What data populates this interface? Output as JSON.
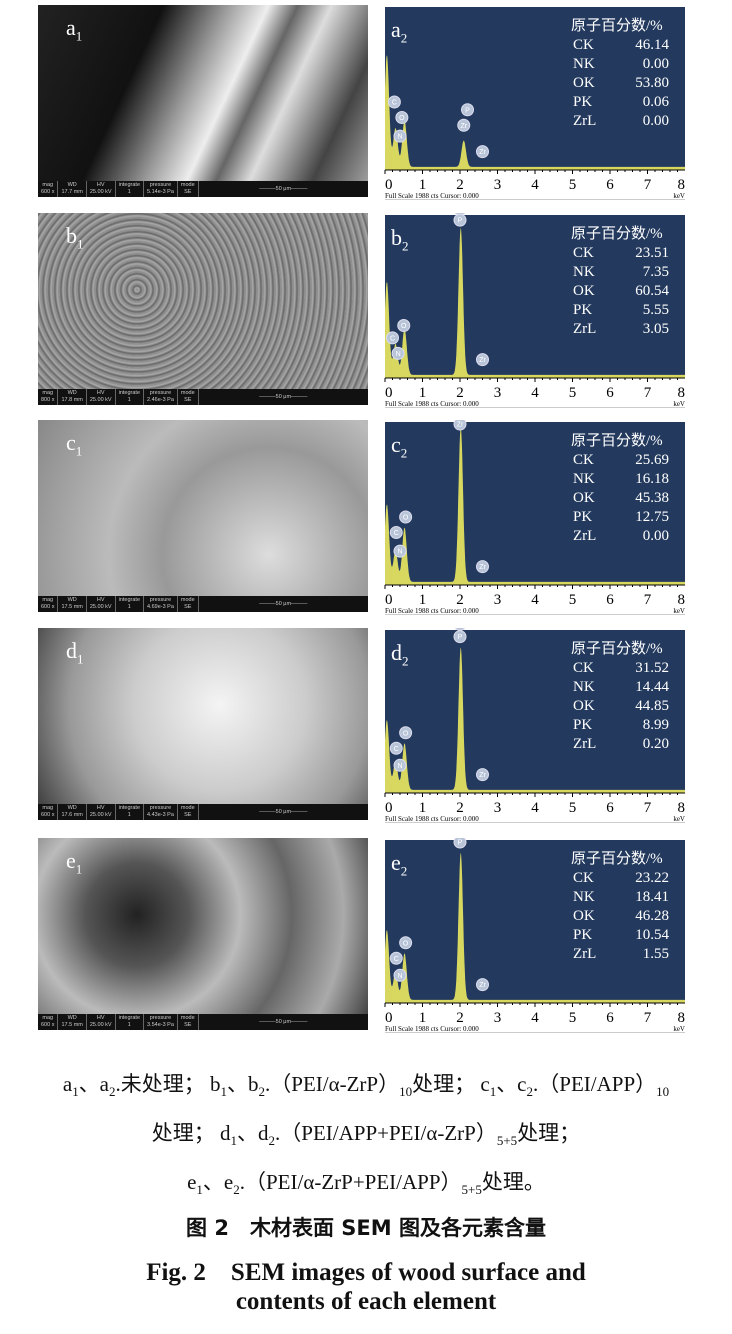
{
  "panels": [
    {
      "sem": {
        "letter": "a",
        "sub": "1",
        "mag": "600 x",
        "wd": "17.7 mm",
        "hv": "25.00 kV",
        "integrate": "1",
        "pressure": "5.14e-3 Pa",
        "mode": "SE",
        "scale": "50 μm"
      },
      "eds": {
        "letter": "a",
        "sub": "2",
        "heading": "原子百分数/%",
        "rows": [
          [
            "CK",
            "46.14"
          ],
          [
            "NK",
            "0.00"
          ],
          [
            "OK",
            "53.80"
          ],
          [
            "PK",
            "0.06"
          ],
          [
            "ZrL",
            "0.00"
          ]
        ],
        "peaks": [
          [
            0.05,
            0.72
          ],
          [
            0.28,
            0.25
          ],
          [
            0.52,
            0.3
          ],
          [
            2.1,
            0.17
          ]
        ],
        "markers": [
          [
            0.25,
            "C",
            0.4
          ],
          [
            0.45,
            "O",
            0.3
          ],
          [
            0.4,
            "N",
            0.18
          ],
          [
            2.2,
            "P",
            0.35
          ],
          [
            2.1,
            "Zr",
            0.25
          ],
          [
            2.6,
            "Zr",
            0.08
          ]
        ],
        "footer": "Full Scale 1988 cts Cursor: 0.000",
        "unit": "keV",
        "xticks": [
          "0",
          "1",
          "2",
          "3",
          "4",
          "5",
          "6",
          "7",
          "8"
        ]
      }
    },
    {
      "sem": {
        "letter": "b",
        "sub": "1",
        "mag": "800 x",
        "wd": "17.8 mm",
        "hv": "25.00 kV",
        "integrate": "1",
        "pressure": "2.46e-3 Pa",
        "mode": "SE",
        "scale": "50 μm"
      },
      "eds": {
        "letter": "b",
        "sub": "2",
        "heading": "原子百分数/%",
        "rows": [
          [
            "CK",
            "23.51"
          ],
          [
            "NK",
            "7.35"
          ],
          [
            "OK",
            "60.54"
          ],
          [
            "PK",
            "5.55"
          ],
          [
            "ZrL",
            "3.05"
          ]
        ],
        "peaks": [
          [
            0.05,
            0.6
          ],
          [
            0.28,
            0.2
          ],
          [
            0.52,
            0.3
          ],
          [
            2.02,
            0.95
          ]
        ],
        "markers": [
          [
            0.2,
            "C",
            0.22
          ],
          [
            0.5,
            "O",
            0.3
          ],
          [
            0.35,
            "N",
            0.12
          ],
          [
            2.0,
            "Zr",
            1.05
          ],
          [
            2.0,
            "P",
            0.98
          ],
          [
            2.6,
            "Zr",
            0.08
          ]
        ],
        "footer": "Full Scale 1988 cts Cursor: 0.000",
        "unit": "keV",
        "xticks": [
          "0",
          "1",
          "2",
          "3",
          "4",
          "5",
          "6",
          "7",
          "8"
        ]
      }
    },
    {
      "sem": {
        "letter": "c",
        "sub": "1",
        "mag": "600 x",
        "wd": "17.5 mm",
        "hv": "25.00 kV",
        "integrate": "1",
        "pressure": "4.69e-3 Pa",
        "mode": "SE",
        "scale": "50 μm"
      },
      "eds": {
        "letter": "c",
        "sub": "2",
        "heading": "原子百分数/%",
        "rows": [
          [
            "CK",
            "25.69"
          ],
          [
            "NK",
            "16.18"
          ],
          [
            "OK",
            "45.38"
          ],
          [
            "PK",
            "12.75"
          ],
          [
            "ZrL",
            "0.00"
          ]
        ],
        "peaks": [
          [
            0.05,
            0.5
          ],
          [
            0.28,
            0.2
          ],
          [
            0.52,
            0.35
          ],
          [
            2.02,
            1.0
          ]
        ],
        "markers": [
          [
            0.3,
            "C",
            0.3
          ],
          [
            0.55,
            "O",
            0.4
          ],
          [
            0.4,
            "N",
            0.18
          ],
          [
            2.0,
            "P",
            1.08
          ],
          [
            2.0,
            "Zr",
            1.0
          ],
          [
            2.6,
            "Zr",
            0.08
          ]
        ],
        "footer": "Full Scale 1988 cts Cursor: 0.000",
        "unit": "keV",
        "xticks": [
          "0",
          "1",
          "2",
          "3",
          "4",
          "5",
          "6",
          "7",
          "8"
        ]
      }
    },
    {
      "sem": {
        "letter": "d",
        "sub": "1",
        "mag": "600 x",
        "wd": "17.6 mm",
        "hv": "25.00 kV",
        "integrate": "1",
        "pressure": "4.43e-3 Pa",
        "mode": "SE",
        "scale": "50 μm"
      },
      "eds": {
        "letter": "d",
        "sub": "2",
        "heading": "原子百分数/%",
        "rows": [
          [
            "CK",
            "31.52"
          ],
          [
            "NK",
            "14.44"
          ],
          [
            "OK",
            "44.85"
          ],
          [
            "PK",
            "8.99"
          ],
          [
            "ZrL",
            "0.20"
          ]
        ],
        "peaks": [
          [
            0.05,
            0.45
          ],
          [
            0.28,
            0.18
          ],
          [
            0.52,
            0.3
          ],
          [
            2.02,
            0.92
          ]
        ],
        "markers": [
          [
            0.3,
            "C",
            0.25
          ],
          [
            0.55,
            "O",
            0.35
          ],
          [
            0.4,
            "N",
            0.14
          ],
          [
            2.0,
            "Zr",
            1.05
          ],
          [
            2.0,
            "P",
            0.97
          ],
          [
            2.6,
            "Zr",
            0.08
          ]
        ],
        "footer": "Full Scale 1988 cts Cursor: 0.000",
        "unit": "keV",
        "xticks": [
          "0",
          "1",
          "2",
          "3",
          "4",
          "5",
          "6",
          "7",
          "8"
        ]
      }
    },
    {
      "sem": {
        "letter": "e",
        "sub": "1",
        "mag": "600 x",
        "wd": "17.5 mm",
        "hv": "25.00 kV",
        "integrate": "1",
        "pressure": "3.54e-3 Pa",
        "mode": "SE",
        "scale": "50 μm"
      },
      "eds": {
        "letter": "e",
        "sub": "2",
        "heading": "原子百分数/%",
        "rows": [
          [
            "CK",
            "23.22"
          ],
          [
            "NK",
            "18.41"
          ],
          [
            "OK",
            "46.28"
          ],
          [
            "PK",
            "10.54"
          ],
          [
            "ZrL",
            "1.55"
          ]
        ],
        "peaks": [
          [
            0.05,
            0.45
          ],
          [
            0.28,
            0.18
          ],
          [
            0.52,
            0.3
          ],
          [
            2.02,
            0.95
          ]
        ],
        "markers": [
          [
            0.3,
            "C",
            0.25
          ],
          [
            0.55,
            "O",
            0.35
          ],
          [
            0.4,
            "N",
            0.14
          ],
          [
            2.0,
            "Zr",
            1.08
          ],
          [
            2.0,
            "P",
            1.0
          ],
          [
            2.6,
            "Zr",
            0.08
          ]
        ],
        "footer": "Full Scale 1988 cts Cursor: 0.000",
        "unit": "keV",
        "xticks": [
          "0",
          "1",
          "2",
          "3",
          "4",
          "5",
          "6",
          "7",
          "8"
        ]
      }
    }
  ],
  "caption": {
    "lines": [
      [
        [
          "a",
          ""
        ],
        [
          "1",
          "s"
        ],
        [
          "、a",
          ""
        ],
        [
          "2",
          "s"
        ],
        [
          ".未处理； b",
          ""
        ],
        [
          "1",
          "s"
        ],
        [
          "、b",
          ""
        ],
        [
          "2",
          "s"
        ],
        [
          ".（PEI/α-ZrP）",
          ""
        ],
        [
          "10",
          "s"
        ],
        [
          "处理； c",
          ""
        ],
        [
          "1",
          "s"
        ],
        [
          "、c",
          ""
        ],
        [
          "2",
          "s"
        ],
        [
          ".（PEI/APP）",
          ""
        ],
        [
          "10",
          "s"
        ]
      ],
      [
        [
          "处理； d",
          ""
        ],
        [
          "1",
          "s"
        ],
        [
          "、d",
          ""
        ],
        [
          "2",
          "s"
        ],
        [
          ".（PEI/APP+PEI/α-ZrP）",
          ""
        ],
        [
          "5+5",
          "s"
        ],
        [
          "处理；",
          ""
        ]
      ],
      [
        [
          "e",
          ""
        ],
        [
          "1",
          "s"
        ],
        [
          "、e",
          ""
        ],
        [
          "2",
          "s"
        ],
        [
          ".（PEI/α-ZrP+PEI/APP）",
          ""
        ],
        [
          "5+5",
          "s"
        ],
        [
          "处理。",
          ""
        ]
      ]
    ],
    "title_cn": "图 2　木材表面 SEM 图及各元素含量",
    "title_en_1": "Fig. 2　SEM images of wood surface and",
    "title_en_2": "contents of each element"
  },
  "colors": {
    "spectrum_bg": "#233a5e",
    "peak_fill": "#d8d860"
  }
}
